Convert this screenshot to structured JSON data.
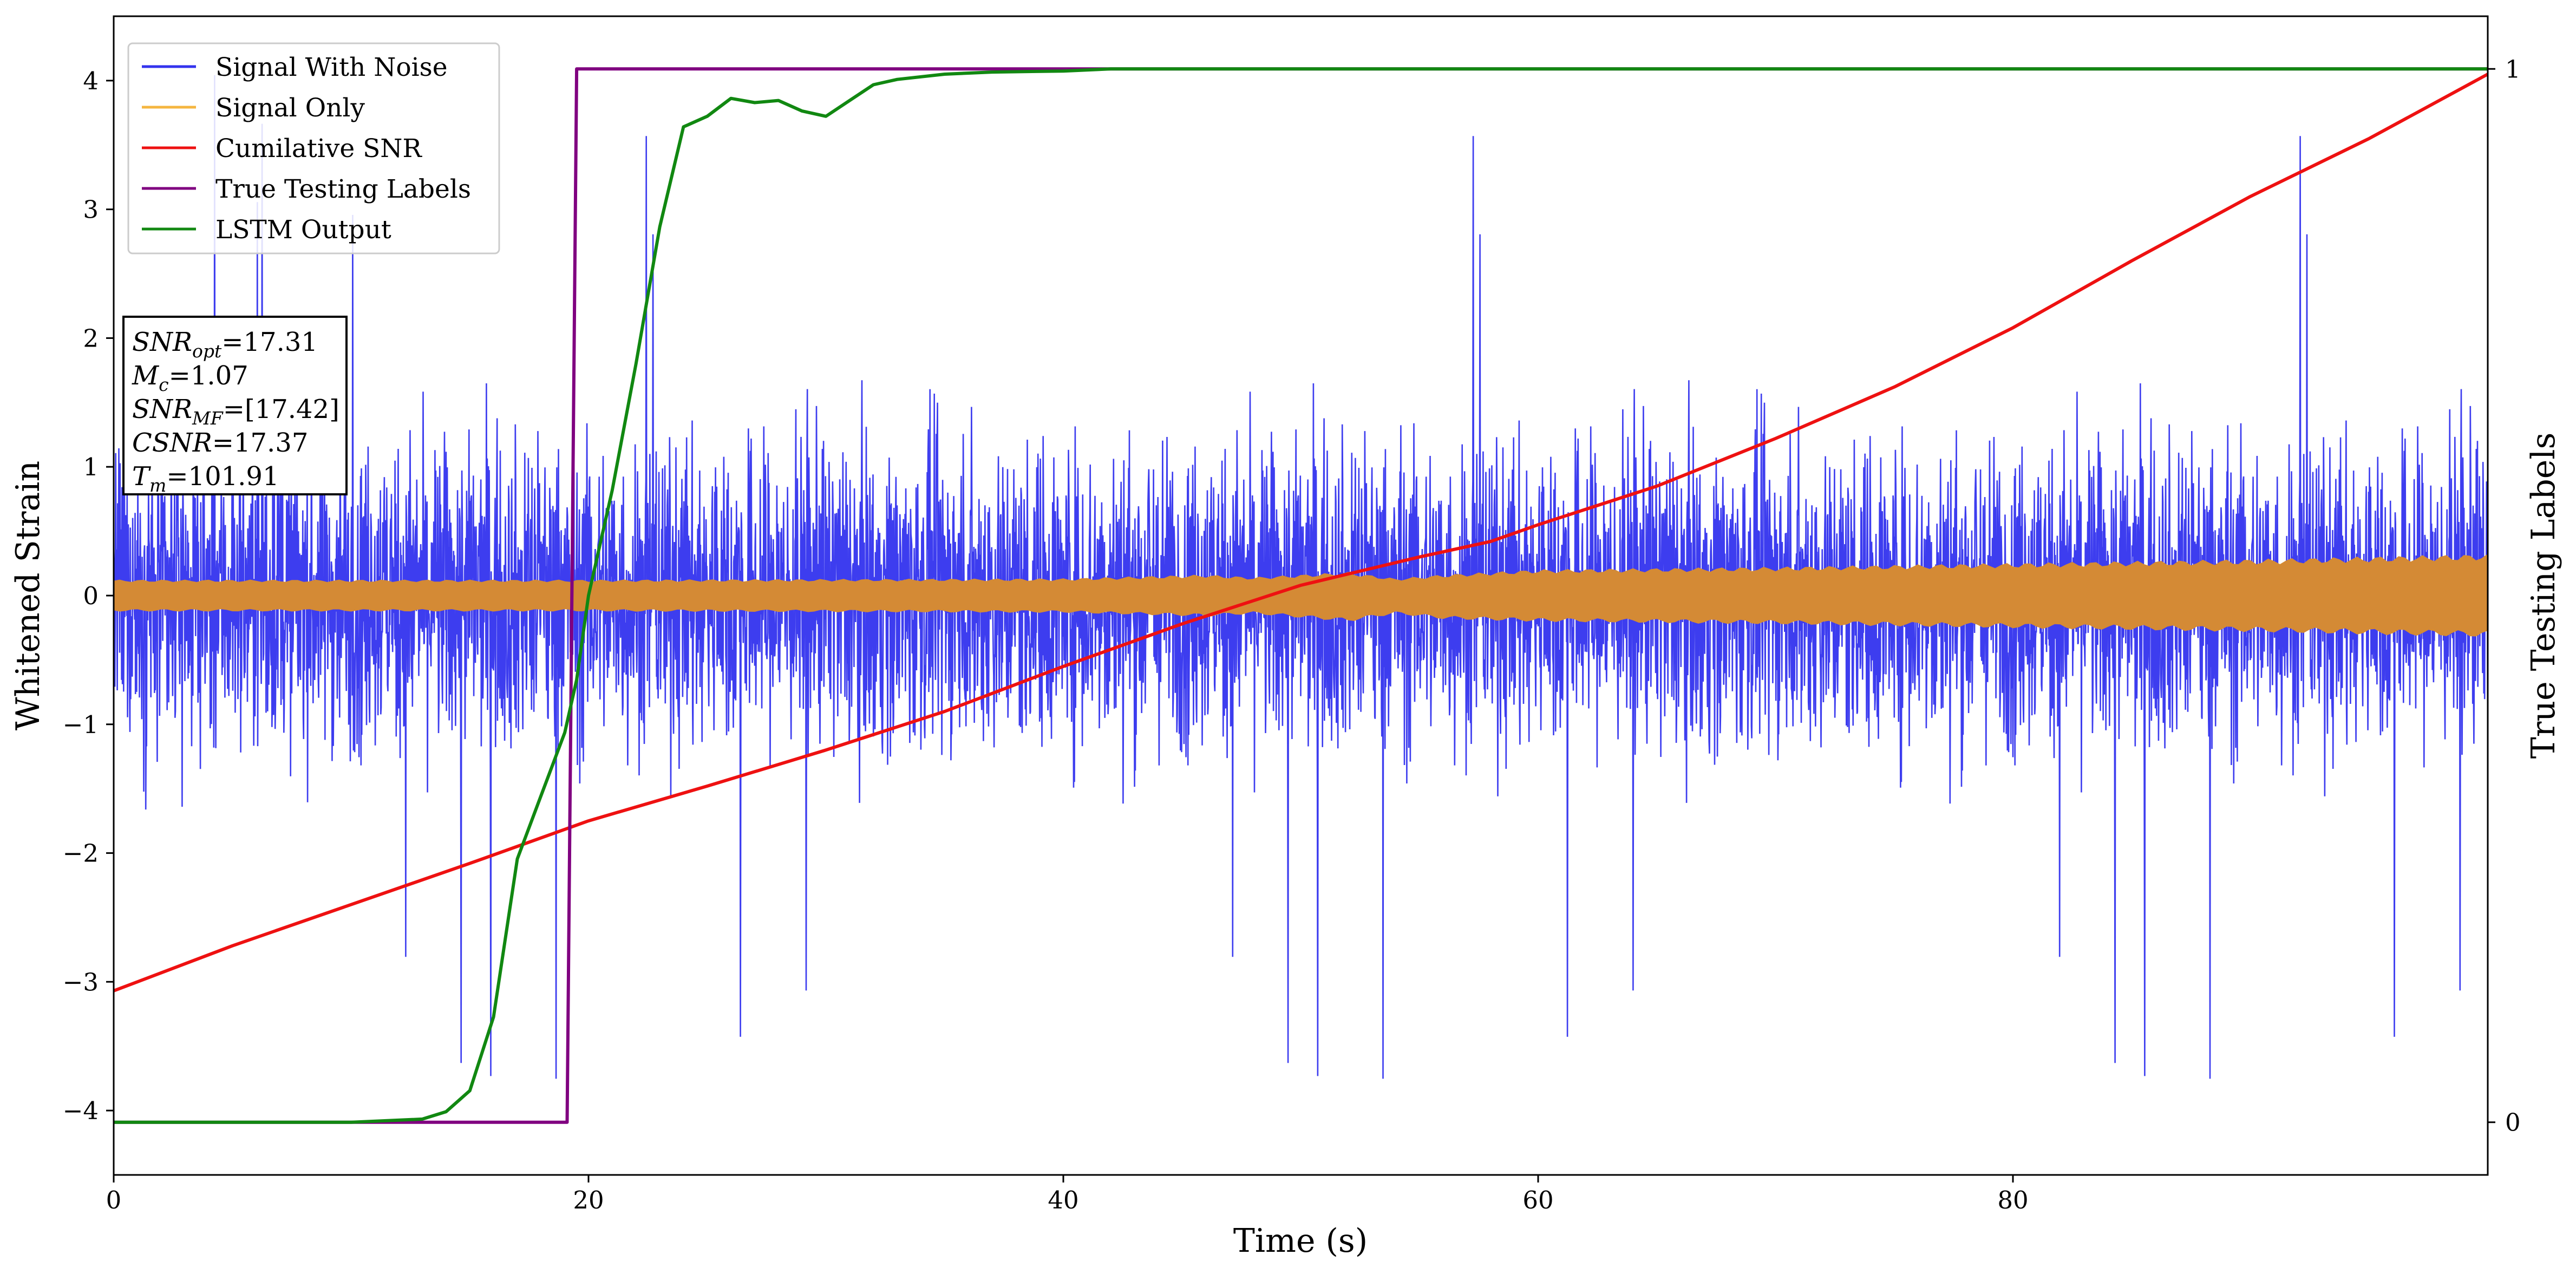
{
  "chart_data": {
    "type": "line",
    "xlabel": "Time (s)",
    "ylabel": "Whitened Strain",
    "y2label": "True Testing Labels",
    "xlim": [
      0,
      100
    ],
    "ylim": [
      -4.5,
      4.5
    ],
    "y2lim": [
      -0.05,
      1.05
    ],
    "xticks": [
      0,
      20,
      40,
      60,
      80
    ],
    "yticks": [
      -4,
      -3,
      -2,
      -1,
      0,
      1,
      2,
      3,
      4
    ],
    "y2ticks": [
      0,
      1
    ],
    "grid": false,
    "legend_position": "top-left",
    "legend": [
      {
        "label": "Signal With Noise",
        "color": "#3333ee"
      },
      {
        "label": "Signal Only",
        "color": "#f5b640"
      },
      {
        "label": "Cumilative SNR",
        "color": "#ee1111"
      },
      {
        "label": "True Testing Labels",
        "color": "#800080"
      },
      {
        "label": "LSTM Output",
        "color": "#118811"
      }
    ],
    "info_box": [
      {
        "sym": "SNR",
        "sub": "opt",
        "val": "=17.31"
      },
      {
        "sym": "M",
        "sub": "c",
        "val": "=1.07"
      },
      {
        "sym": "SNR",
        "sub": "MF",
        "val": "=[17.42]"
      },
      {
        "sym": "CSNR",
        "sub": "",
        "val": "=17.37"
      },
      {
        "sym": "T",
        "sub": "m",
        "val": "=101.91"
      }
    ],
    "series": [
      {
        "name": "Signal With Noise",
        "axis": "left",
        "color": "#3333ee",
        "style": "noise",
        "x_range": [
          0,
          100
        ],
        "typical_amplitude": 1.3,
        "peak_amplitude": 4.1
      },
      {
        "name": "Signal Only",
        "axis": "left",
        "color": "#d48a35",
        "style": "band",
        "x": [
          0,
          20,
          40,
          46,
          48,
          52,
          54,
          56,
          60,
          70,
          80,
          90,
          100
        ],
        "y_upper": [
          0.12,
          0.12,
          0.13,
          0.16,
          0.14,
          0.18,
          0.13,
          0.16,
          0.2,
          0.22,
          0.25,
          0.28,
          0.32
        ],
        "y_lower": [
          -0.12,
          -0.12,
          -0.13,
          -0.16,
          -0.14,
          -0.2,
          -0.14,
          -0.18,
          -0.2,
          -0.22,
          -0.25,
          -0.28,
          -0.32
        ]
      },
      {
        "name": "Cumilative SNR",
        "axis": "left",
        "color": "#ee1111",
        "x": [
          0,
          5,
          10,
          15,
          20,
          25,
          30,
          35,
          40,
          45,
          50,
          55,
          58,
          60,
          65,
          70,
          75,
          80,
          85,
          90,
          95,
          100
        ],
        "y": [
          -3.07,
          -2.72,
          -2.4,
          -2.08,
          -1.75,
          -1.48,
          -1.2,
          -0.9,
          -0.55,
          -0.22,
          0.08,
          0.3,
          0.42,
          0.55,
          0.85,
          1.22,
          1.62,
          2.08,
          2.6,
          3.1,
          3.55,
          4.05
        ]
      },
      {
        "name": "True Testing Labels",
        "axis": "right",
        "color": "#800080",
        "x": [
          0,
          19.1,
          19.5,
          100
        ],
        "y": [
          0,
          0,
          1,
          1
        ]
      },
      {
        "name": "LSTM Output",
        "axis": "right",
        "color": "#118811",
        "x": [
          0,
          10,
          13,
          14,
          15,
          16,
          17,
          18,
          19,
          19.5,
          20,
          21,
          22,
          23,
          24,
          25,
          26,
          27,
          28,
          29,
          30,
          31,
          32,
          33,
          35,
          37,
          40,
          42,
          100
        ],
        "y": [
          0,
          0,
          0.003,
          0.01,
          0.03,
          0.1,
          0.25,
          0.31,
          0.37,
          0.42,
          0.5,
          0.6,
          0.72,
          0.85,
          0.945,
          0.955,
          0.972,
          0.968,
          0.97,
          0.96,
          0.955,
          0.97,
          0.985,
          0.99,
          0.995,
          0.997,
          0.998,
          1.0,
          1.0
        ]
      }
    ]
  }
}
